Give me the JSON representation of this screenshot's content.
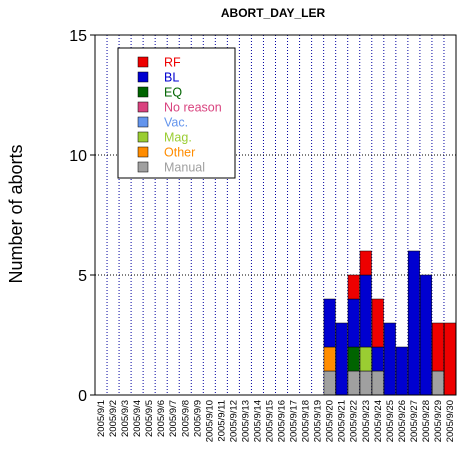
{
  "chart_data": {
    "type": "bar",
    "stacked": true,
    "title": "ABORT_DAY_LER",
    "xlabel": "",
    "ylabel": "Number of aborts",
    "ylim": [
      0,
      15
    ],
    "yticks": [
      0,
      5,
      10,
      15
    ],
    "grid": "vertical-dotted-per-day, horizontal-dotted-at-ticks",
    "legend_position": "top-left",
    "categories": [
      "2005/9/1",
      "2005/9/2",
      "2005/9/3",
      "2005/9/4",
      "2005/9/5",
      "2005/9/6",
      "2005/9/7",
      "2005/9/8",
      "2005/9/9",
      "2005/9/10",
      "2005/9/11",
      "2005/9/12",
      "2005/9/13",
      "2005/9/14",
      "2005/9/15",
      "2005/9/16",
      "2005/9/17",
      "2005/9/18",
      "2005/9/19",
      "2005/9/20",
      "2005/9/21",
      "2005/9/22",
      "2005/9/23",
      "2005/9/24",
      "2005/9/25",
      "2005/9/26",
      "2005/9/27",
      "2005/9/28",
      "2005/9/29",
      "2005/9/30"
    ],
    "series": [
      {
        "name": "Manual",
        "color": "#a0a0a0",
        "values": [
          0,
          0,
          0,
          0,
          0,
          0,
          0,
          0,
          0,
          0,
          0,
          0,
          0,
          0,
          0,
          0,
          0,
          0,
          0,
          1,
          0,
          1,
          1,
          1,
          0,
          0,
          0,
          0,
          1,
          0
        ]
      },
      {
        "name": "Other",
        "color": "#ff8c00",
        "values": [
          0,
          0,
          0,
          0,
          0,
          0,
          0,
          0,
          0,
          0,
          0,
          0,
          0,
          0,
          0,
          0,
          0,
          0,
          0,
          1,
          0,
          0,
          0,
          0,
          0,
          0,
          0,
          0,
          0,
          0
        ]
      },
      {
        "name": "Mag.",
        "color": "#9acd32",
        "values": [
          0,
          0,
          0,
          0,
          0,
          0,
          0,
          0,
          0,
          0,
          0,
          0,
          0,
          0,
          0,
          0,
          0,
          0,
          0,
          0,
          0,
          0,
          1,
          0,
          0,
          0,
          0,
          0,
          0,
          0
        ]
      },
      {
        "name": "Vac.",
        "color": "#6495ed",
        "values": [
          0,
          0,
          0,
          0,
          0,
          0,
          0,
          0,
          0,
          0,
          0,
          0,
          0,
          0,
          0,
          0,
          0,
          0,
          0,
          0,
          0,
          0,
          0,
          0,
          0,
          0,
          0,
          0,
          0,
          0
        ]
      },
      {
        "name": "No reason",
        "color": "#d9437f",
        "values": [
          0,
          0,
          0,
          0,
          0,
          0,
          0,
          0,
          0,
          0,
          0,
          0,
          0,
          0,
          0,
          0,
          0,
          0,
          0,
          0,
          0,
          0,
          0,
          0,
          0,
          0,
          0,
          0,
          0,
          0
        ]
      },
      {
        "name": "EQ",
        "color": "#006400",
        "values": [
          0,
          0,
          0,
          0,
          0,
          0,
          0,
          0,
          0,
          0,
          0,
          0,
          0,
          0,
          0,
          0,
          0,
          0,
          0,
          0,
          0,
          1,
          0,
          0,
          0,
          0,
          0,
          0,
          0,
          0
        ]
      },
      {
        "name": "BL",
        "color": "#0000d0",
        "values": [
          0,
          0,
          0,
          0,
          0,
          0,
          0,
          0,
          0,
          0,
          0,
          0,
          0,
          0,
          0,
          0,
          0,
          0,
          0,
          2,
          3,
          2,
          3,
          1,
          3,
          2,
          6,
          5,
          0,
          0
        ]
      },
      {
        "name": "RF",
        "color": "#ee0000",
        "values": [
          0,
          0,
          0,
          0,
          0,
          0,
          0,
          0,
          0,
          0,
          0,
          0,
          0,
          0,
          0,
          0,
          0,
          0,
          0,
          0,
          0,
          1,
          1,
          2,
          0,
          0,
          0,
          0,
          2,
          3
        ]
      }
    ],
    "legend_order": [
      "RF",
      "BL",
      "EQ",
      "No reason",
      "Vac.",
      "Mag.",
      "Other",
      "Manual"
    ]
  }
}
